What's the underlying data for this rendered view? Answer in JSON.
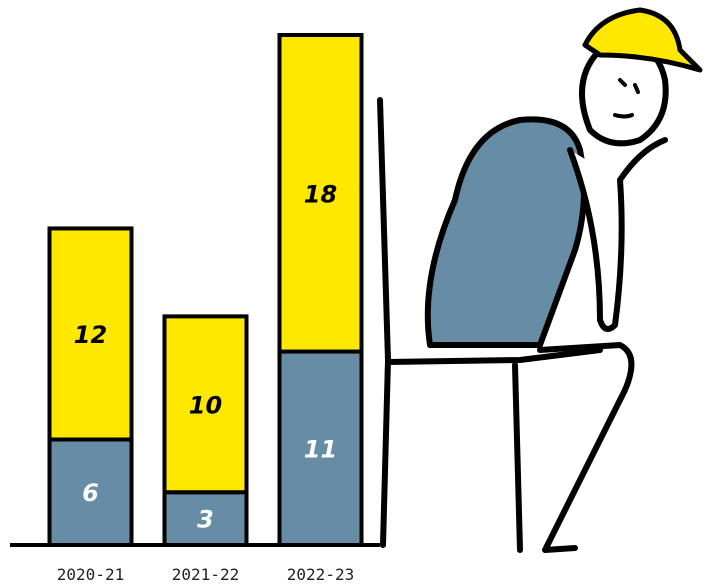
{
  "chart_data": {
    "type": "stacked_bar",
    "categories": [
      "2020-21",
      "2021-22",
      "2022-23"
    ],
    "series": [
      {
        "color": "#678ca5",
        "values": [
          6,
          3,
          11
        ]
      },
      {
        "color": "#ffe800",
        "values": [
          12,
          10,
          18
        ]
      }
    ]
  }
}
